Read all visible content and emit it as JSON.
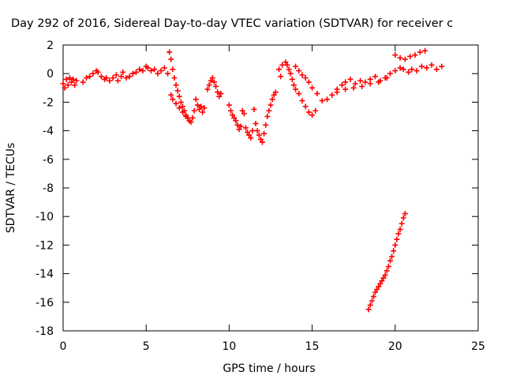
{
  "chart_data": {
    "type": "scatter",
    "title": "Day 292 of 2016, Sidereal Day-to-day VTEC variation (SDTVAR) for receiver c",
    "xlabel": "GPS time / hours",
    "ylabel": "SDTVAR / TECUs",
    "xlim": [
      0,
      25
    ],
    "ylim": [
      -18,
      2
    ],
    "x_ticks": [
      0,
      5,
      10,
      15,
      20,
      25
    ],
    "y_ticks": [
      2,
      0,
      -2,
      -4,
      -6,
      -8,
      -10,
      -12,
      -14,
      -16,
      -18
    ],
    "marker": "plus",
    "grid": false,
    "legend": "none",
    "series_color": "#ff0000",
    "series": [
      {
        "points": [
          [
            0.0,
            -0.7
          ],
          [
            0.1,
            -1.0
          ],
          [
            0.2,
            -0.4
          ],
          [
            0.3,
            -0.8
          ],
          [
            0.4,
            -0.3
          ],
          [
            0.5,
            -0.6
          ],
          [
            0.6,
            -0.4
          ],
          [
            0.7,
            -0.8
          ],
          [
            0.8,
            -0.5
          ],
          [
            1.2,
            -0.6
          ],
          [
            1.4,
            -0.3
          ],
          [
            1.6,
            -0.2
          ],
          [
            1.8,
            0.0
          ],
          [
            2.0,
            0.2
          ],
          [
            2.1,
            0.1
          ],
          [
            2.3,
            -0.2
          ],
          [
            2.5,
            -0.4
          ],
          [
            2.6,
            -0.3
          ],
          [
            2.8,
            -0.5
          ],
          [
            3.0,
            -0.3
          ],
          [
            3.2,
            -0.1
          ],
          [
            3.3,
            -0.5
          ],
          [
            3.5,
            -0.2
          ],
          [
            3.6,
            0.1
          ],
          [
            3.8,
            -0.3
          ],
          [
            4.0,
            -0.2
          ],
          [
            4.2,
            0.0
          ],
          [
            4.4,
            0.1
          ],
          [
            4.6,
            0.3
          ],
          [
            4.8,
            0.2
          ],
          [
            5.0,
            0.5
          ],
          [
            5.1,
            0.4
          ],
          [
            5.3,
            0.2
          ],
          [
            5.5,
            0.3
          ],
          [
            5.7,
            0.0
          ],
          [
            5.9,
            0.2
          ],
          [
            6.1,
            0.4
          ],
          [
            6.3,
            0.0
          ],
          [
            6.4,
            1.5
          ],
          [
            6.5,
            1.0
          ],
          [
            6.6,
            0.3
          ],
          [
            6.7,
            -0.3
          ],
          [
            6.8,
            -0.8
          ],
          [
            6.9,
            -1.2
          ],
          [
            7.0,
            -1.6
          ],
          [
            7.1,
            -2.0
          ],
          [
            7.2,
            -2.3
          ],
          [
            7.3,
            -2.6
          ],
          [
            7.4,
            -2.9
          ],
          [
            7.5,
            -3.1
          ],
          [
            7.6,
            -3.3
          ],
          [
            7.7,
            -3.4
          ],
          [
            7.8,
            -3.1
          ],
          [
            7.9,
            -2.6
          ],
          [
            6.5,
            -1.5
          ],
          [
            6.6,
            -1.8
          ],
          [
            6.8,
            -2.1
          ],
          [
            7.0,
            -2.4
          ],
          [
            7.2,
            -2.7
          ],
          [
            7.4,
            -3.0
          ],
          [
            8.0,
            -1.8
          ],
          [
            8.1,
            -2.2
          ],
          [
            8.2,
            -2.5
          ],
          [
            8.3,
            -2.3
          ],
          [
            8.4,
            -2.7
          ],
          [
            8.5,
            -2.4
          ],
          [
            8.7,
            -1.1
          ],
          [
            8.8,
            -0.8
          ],
          [
            8.9,
            -0.5
          ],
          [
            9.0,
            -0.3
          ],
          [
            9.1,
            -0.6
          ],
          [
            9.2,
            -0.9
          ],
          [
            9.3,
            -1.3
          ],
          [
            9.4,
            -1.6
          ],
          [
            9.5,
            -1.4
          ],
          [
            10.0,
            -2.2
          ],
          [
            10.1,
            -2.6
          ],
          [
            10.2,
            -2.9
          ],
          [
            10.3,
            -3.1
          ],
          [
            10.4,
            -3.3
          ],
          [
            10.5,
            -3.6
          ],
          [
            10.6,
            -3.9
          ],
          [
            10.7,
            -3.7
          ],
          [
            10.8,
            -2.6
          ],
          [
            10.9,
            -2.8
          ],
          [
            11.0,
            -3.8
          ],
          [
            11.1,
            -4.1
          ],
          [
            11.2,
            -4.3
          ],
          [
            11.3,
            -4.5
          ],
          [
            11.4,
            -4.0
          ],
          [
            11.5,
            -2.5
          ],
          [
            11.6,
            -3.5
          ],
          [
            11.7,
            -4.0
          ],
          [
            11.8,
            -4.3
          ],
          [
            11.9,
            -4.6
          ],
          [
            12.0,
            -4.8
          ],
          [
            12.1,
            -4.2
          ],
          [
            12.2,
            -3.6
          ],
          [
            12.3,
            -3.0
          ],
          [
            12.4,
            -2.6
          ],
          [
            12.5,
            -2.2
          ],
          [
            12.6,
            -1.8
          ],
          [
            12.7,
            -1.5
          ],
          [
            12.8,
            -1.3
          ],
          [
            13.0,
            0.3
          ],
          [
            13.1,
            -0.2
          ],
          [
            13.2,
            0.6
          ],
          [
            13.4,
            0.8
          ],
          [
            13.5,
            0.6
          ],
          [
            13.6,
            0.3
          ],
          [
            13.7,
            0.0
          ],
          [
            13.8,
            -0.4
          ],
          [
            13.9,
            -0.8
          ],
          [
            14.0,
            -1.1
          ],
          [
            14.2,
            -1.4
          ],
          [
            14.4,
            -1.9
          ],
          [
            14.6,
            -2.3
          ],
          [
            14.8,
            -2.7
          ],
          [
            15.0,
            -2.9
          ],
          [
            15.2,
            -2.6
          ],
          [
            14.0,
            0.5
          ],
          [
            14.2,
            0.2
          ],
          [
            14.4,
            -0.1
          ],
          [
            14.6,
            -0.3
          ],
          [
            14.8,
            -0.6
          ],
          [
            15.0,
            -1.0
          ],
          [
            15.3,
            -1.4
          ],
          [
            15.6,
            -1.9
          ],
          [
            15.9,
            -1.8
          ],
          [
            16.2,
            -1.5
          ],
          [
            16.5,
            -1.1
          ],
          [
            16.8,
            -0.8
          ],
          [
            17.0,
            -0.6
          ],
          [
            17.3,
            -0.4
          ],
          [
            17.6,
            -0.7
          ],
          [
            17.9,
            -0.5
          ],
          [
            18.2,
            -0.6
          ],
          [
            18.5,
            -0.4
          ],
          [
            18.8,
            -0.2
          ],
          [
            19.1,
            -0.5
          ],
          [
            19.4,
            -0.3
          ],
          [
            19.7,
            0.0
          ],
          [
            20.0,
            0.2
          ],
          [
            20.3,
            0.4
          ],
          [
            16.5,
            -1.3
          ],
          [
            17.0,
            -1.1
          ],
          [
            17.5,
            -1.0
          ],
          [
            18.0,
            -0.9
          ],
          [
            18.5,
            -0.7
          ],
          [
            19.0,
            -0.6
          ],
          [
            19.5,
            -0.3
          ],
          [
            20.5,
            0.3
          ],
          [
            20.8,
            0.1
          ],
          [
            21.0,
            0.3
          ],
          [
            21.3,
            0.2
          ],
          [
            21.6,
            0.5
          ],
          [
            21.9,
            0.4
          ],
          [
            22.2,
            0.6
          ],
          [
            22.5,
            0.3
          ],
          [
            22.8,
            0.5
          ],
          [
            20.0,
            1.3
          ],
          [
            20.3,
            1.1
          ],
          [
            20.6,
            1.0
          ],
          [
            20.9,
            1.2
          ],
          [
            21.2,
            1.3
          ],
          [
            21.5,
            1.5
          ],
          [
            21.8,
            1.6
          ],
          [
            18.4,
            -16.5
          ],
          [
            18.5,
            -16.2
          ],
          [
            18.6,
            -15.9
          ],
          [
            18.7,
            -15.6
          ],
          [
            18.8,
            -15.3
          ],
          [
            18.9,
            -15.1
          ],
          [
            19.0,
            -14.9
          ],
          [
            19.1,
            -14.7
          ],
          [
            19.2,
            -14.5
          ],
          [
            19.3,
            -14.3
          ],
          [
            19.4,
            -14.1
          ],
          [
            19.5,
            -13.8
          ],
          [
            19.6,
            -13.5
          ],
          [
            19.7,
            -13.1
          ],
          [
            19.8,
            -12.8
          ],
          [
            19.9,
            -12.4
          ],
          [
            20.0,
            -12.0
          ],
          [
            20.1,
            -11.6
          ],
          [
            20.2,
            -11.2
          ],
          [
            20.3,
            -10.9
          ],
          [
            20.4,
            -10.5
          ],
          [
            20.5,
            -10.1
          ],
          [
            20.6,
            -9.8
          ]
        ]
      }
    ]
  }
}
